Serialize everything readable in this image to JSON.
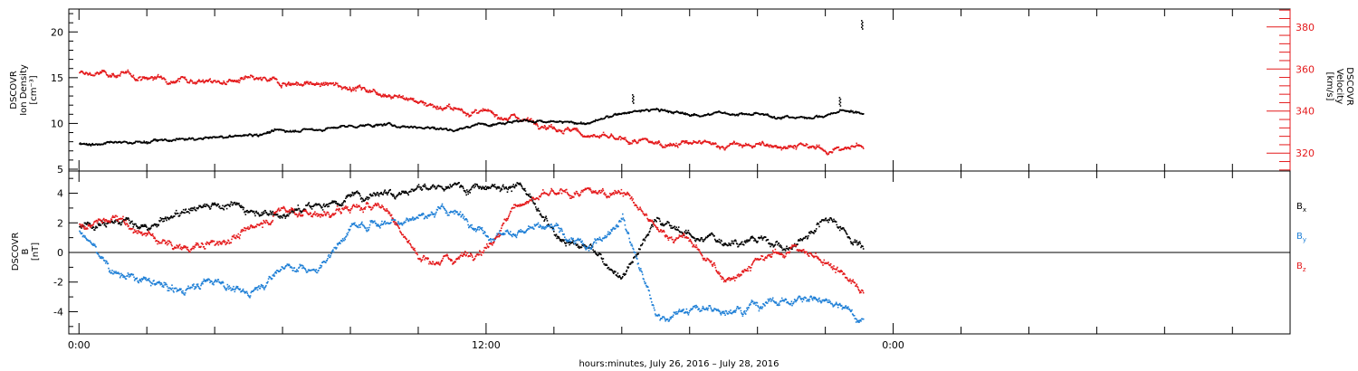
{
  "figure": {
    "xaxis_title": "hours:minutes, July 26, 2016 – July 28, 2016",
    "x_tick_labels": [
      {
        "hour": 0,
        "label": "0:00"
      },
      {
        "hour": 12,
        "label": "12:00"
      },
      {
        "hour": 24,
        "label": "0:00"
      }
    ],
    "xlim_hours": [
      -0.3,
      35.7
    ],
    "data_end_hour": 23.1
  },
  "colors": {
    "black": "#000000",
    "red": "#e41a1c",
    "blue": "#1e7fd6",
    "axis": "#000000"
  },
  "chart_data": [
    {
      "type": "scatter",
      "panel": "top",
      "ylabel_left": [
        "DSCOVR",
        "Ion Density",
        "[cm⁻³]"
      ],
      "ylabel_right": [
        "DSCOVR",
        "Velocity",
        "[km/s]"
      ],
      "ylim_left": [
        4.8,
        22.5
      ],
      "ylim_right": [
        311.5,
        388.5
      ],
      "left_ticks": [
        5,
        10,
        15,
        20
      ],
      "right_ticks": [
        320,
        340,
        360,
        380
      ],
      "series": [
        {
          "axis": "left",
          "color": "black",
          "x": [
            0,
            1,
            2,
            3,
            4,
            5,
            6,
            7,
            8,
            9,
            10,
            11,
            12,
            13,
            14,
            15,
            16,
            17,
            18,
            19,
            20,
            21,
            22,
            22.5,
            23.0
          ],
          "values": [
            7.8,
            7.9,
            8.1,
            8.3,
            8.5,
            8.8,
            9.3,
            9.4,
            9.8,
            9.9,
            9.7,
            9.4,
            10.1,
            10.4,
            10.2,
            10.1,
            11.2,
            11.6,
            11.0,
            11.2,
            11.0,
            10.7,
            10.9,
            11.5,
            11.2
          ],
          "spikes": [
            {
              "x": 23.05,
              "value": 21.3
            },
            {
              "x": 22.4,
              "value": 12.9
            },
            {
              "x": 16.3,
              "value": 13.2
            }
          ]
        },
        {
          "axis": "right",
          "color": "red",
          "x": [
            0,
            1,
            2,
            3,
            4,
            5,
            6,
            7,
            8,
            9,
            10,
            11,
            12,
            13,
            14,
            15,
            16,
            17,
            18,
            19,
            20,
            21,
            22,
            22.5,
            23.0
          ],
          "values": [
            358,
            358,
            356,
            356,
            354,
            355,
            354,
            353,
            352,
            349,
            345,
            341,
            339,
            337,
            333,
            329,
            326,
            325,
            325,
            324,
            324,
            324,
            322,
            322,
            324
          ]
        }
      ]
    },
    {
      "type": "scatter",
      "panel": "bottom",
      "ylabel_left": [
        "DSCOVR",
        "B",
        "[nT]"
      ],
      "ylim": [
        -5.5,
        5.5
      ],
      "ticks": [
        -4,
        -2,
        0,
        2,
        4
      ],
      "zero_line": true,
      "series": [
        {
          "name": "B",
          "sub": "x",
          "color": "black",
          "x": [
            0,
            1,
            2,
            3,
            4,
            5,
            6,
            7,
            8,
            9,
            10,
            11,
            12,
            13,
            14,
            15,
            16,
            17,
            18,
            19,
            20,
            21,
            22,
            22.5,
            23.0
          ],
          "values": [
            1.8,
            2.3,
            1.5,
            2.8,
            3.4,
            3.0,
            2.6,
            3.2,
            3.8,
            4.2,
            4.4,
            4.4,
            4.7,
            4.5,
            1.2,
            0.3,
            -1.5,
            2.3,
            1.2,
            0.8,
            1.0,
            0.3,
            2.5,
            1.8,
            0.5
          ]
        },
        {
          "name": "B",
          "sub": "y",
          "color": "blue",
          "x": [
            0,
            1,
            2,
            3,
            4,
            5,
            6,
            7,
            8,
            9,
            10,
            11,
            12,
            13,
            14,
            15,
            16,
            17,
            18,
            19,
            20,
            21,
            22,
            22.5,
            23.0
          ],
          "values": [
            1.5,
            -1.2,
            -2.0,
            -2.5,
            -1.8,
            -2.8,
            -0.8,
            -1.2,
            1.8,
            2.1,
            2.5,
            2.9,
            1.3,
            1.5,
            1.6,
            0.2,
            2.6,
            -4.3,
            -3.9,
            -3.8,
            -3.4,
            -3.2,
            -3.1,
            -3.3,
            -4.6
          ]
        },
        {
          "name": "B",
          "sub": "z",
          "color": "red",
          "x": [
            0,
            1,
            2,
            3,
            4,
            5,
            6,
            7,
            8,
            9,
            10,
            11,
            12,
            13,
            14,
            15,
            16,
            17,
            18,
            19,
            20,
            21,
            22,
            22.5,
            23.0
          ],
          "values": [
            1.8,
            2.3,
            1.2,
            0.3,
            0.6,
            1.5,
            3.0,
            2.6,
            3.0,
            3.2,
            -0.4,
            -0.4,
            0.5,
            3.5,
            3.9,
            4.0,
            4.3,
            1.5,
            0.8,
            -1.8,
            -0.6,
            0.4,
            -0.6,
            -1.2,
            -2.8
          ]
        }
      ]
    }
  ]
}
